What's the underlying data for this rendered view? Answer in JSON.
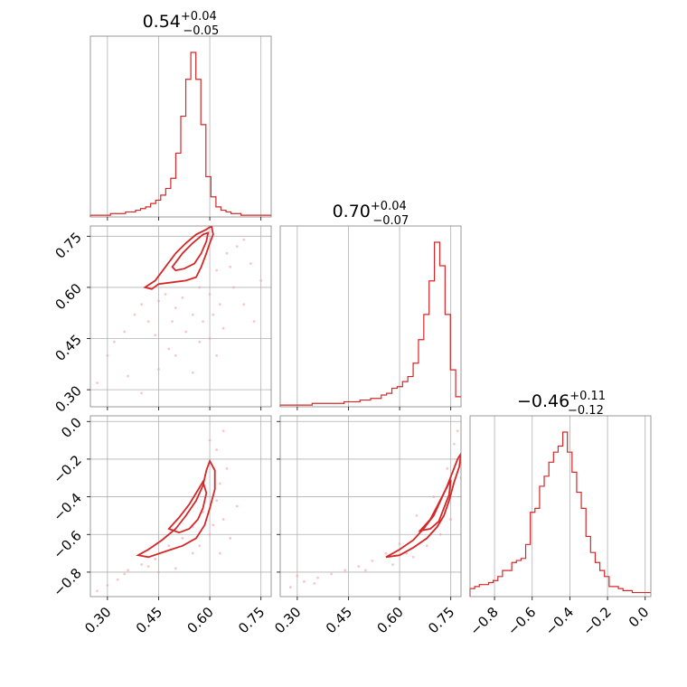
{
  "colors": {
    "series": "#d62728",
    "fill_inner": "#e8868a",
    "fill_outer": "#f6c9cb",
    "points": "#f2a2a5",
    "grid": "#b0b0b0"
  },
  "chart_data": {
    "type": "corner",
    "grid": true,
    "parameters": [
      {
        "range": [
          0.25,
          0.78
        ],
        "ticks": [
          "0.30",
          "0.45",
          "0.60",
          "0.75"
        ],
        "tick_values": [
          0.3,
          0.45,
          0.6,
          0.75
        ],
        "title": {
          "main": "0.54",
          "sup": "+0.04",
          "sub": "−0.05"
        }
      },
      {
        "range": [
          0.25,
          0.78
        ],
        "ticks": [
          "0.30",
          "0.45",
          "0.60",
          "0.75"
        ],
        "tick_values": [
          0.3,
          0.45,
          0.6,
          0.75
        ],
        "title": {
          "main": "0.70",
          "sup": "+0.04",
          "sub": "−0.07"
        }
      },
      {
        "range": [
          -0.93,
          0.03
        ],
        "ticks": [
          "−0.8",
          "−0.6",
          "−0.4",
          "−0.2",
          "0.0"
        ],
        "tick_values": [
          -0.8,
          -0.6,
          -0.4,
          -0.2,
          0.0
        ],
        "title": {
          "main": "−0.46",
          "sup": "+0.11",
          "sub": "−0.12"
        }
      }
    ],
    "histograms": [
      {
        "param": 0,
        "counts": [
          1,
          1,
          1,
          1,
          2,
          2,
          2,
          3,
          3,
          4,
          5,
          6,
          8,
          10,
          13,
          17,
          23,
          38,
          60,
          82,
          98,
          82,
          55,
          24,
          12,
          6,
          4,
          3,
          2,
          2,
          1,
          1,
          1,
          1,
          1,
          1
        ]
      },
      {
        "param": 1,
        "counts": [
          1,
          1,
          1,
          1,
          1,
          1,
          2,
          2,
          2,
          2,
          2,
          2,
          3,
          3,
          3,
          4,
          4,
          5,
          5,
          7,
          8,
          11,
          12,
          15,
          18,
          26,
          40,
          55,
          75,
          98,
          84,
          55,
          22,
          6
        ]
      },
      {
        "param": 2,
        "counts": [
          4,
          5,
          6,
          6,
          7,
          8,
          10,
          13,
          13,
          17,
          18,
          19,
          26,
          42,
          44,
          55,
          60,
          67,
          72,
          75,
          82,
          72,
          62,
          52,
          44,
          30,
          22,
          17,
          13,
          10,
          5,
          5,
          4,
          3,
          3,
          2,
          2,
          2,
          2
        ]
      }
    ],
    "pairs": [
      {
        "x_param": 0,
        "y_param": 1,
        "contour_outer": [
          [
            0.41,
            0.6
          ],
          [
            0.44,
            0.62
          ],
          [
            0.47,
            0.66
          ],
          [
            0.5,
            0.7
          ],
          [
            0.53,
            0.73
          ],
          [
            0.56,
            0.755
          ],
          [
            0.59,
            0.77
          ],
          [
            0.605,
            0.78
          ],
          [
            0.61,
            0.755
          ],
          [
            0.6,
            0.73
          ],
          [
            0.59,
            0.7
          ],
          [
            0.575,
            0.66
          ],
          [
            0.56,
            0.63
          ],
          [
            0.53,
            0.62
          ],
          [
            0.49,
            0.615
          ],
          [
            0.45,
            0.61
          ],
          [
            0.43,
            0.595
          ]
        ],
        "contour_inner": [
          [
            0.49,
            0.66
          ],
          [
            0.52,
            0.7
          ],
          [
            0.55,
            0.73
          ],
          [
            0.58,
            0.755
          ],
          [
            0.595,
            0.76
          ],
          [
            0.59,
            0.735
          ],
          [
            0.575,
            0.7
          ],
          [
            0.555,
            0.67
          ],
          [
            0.525,
            0.655
          ],
          [
            0.5,
            0.65
          ]
        ],
        "points": [
          [
            0.3,
            0.4
          ],
          [
            0.32,
            0.44
          ],
          [
            0.35,
            0.47
          ],
          [
            0.38,
            0.52
          ],
          [
            0.4,
            0.55
          ],
          [
            0.42,
            0.5
          ],
          [
            0.45,
            0.56
          ],
          [
            0.47,
            0.58
          ],
          [
            0.5,
            0.54
          ],
          [
            0.52,
            0.57
          ],
          [
            0.55,
            0.52
          ],
          [
            0.57,
            0.6
          ],
          [
            0.6,
            0.58
          ],
          [
            0.62,
            0.65
          ],
          [
            0.65,
            0.7
          ],
          [
            0.68,
            0.72
          ],
          [
            0.7,
            0.74
          ],
          [
            0.72,
            0.67
          ],
          [
            0.75,
            0.62
          ],
          [
            0.45,
            0.36
          ],
          [
            0.48,
            0.42
          ],
          [
            0.53,
            0.47
          ],
          [
            0.58,
            0.5
          ],
          [
            0.6,
            0.45
          ],
          [
            0.63,
            0.55
          ],
          [
            0.67,
            0.6
          ],
          [
            0.36,
            0.34
          ],
          [
            0.4,
            0.29
          ],
          [
            0.5,
            0.4
          ],
          [
            0.55,
            0.35
          ],
          [
            0.62,
            0.4
          ],
          [
            0.64,
            0.48
          ],
          [
            0.7,
            0.55
          ],
          [
            0.73,
            0.5
          ],
          [
            0.27,
            0.32
          ],
          [
            0.44,
            0.46
          ],
          [
            0.49,
            0.5
          ],
          [
            0.57,
            0.44
          ],
          [
            0.61,
            0.52
          ],
          [
            0.66,
            0.66
          ]
        ]
      },
      {
        "x_param": 0,
        "y_param": 2,
        "contour_outer": [
          [
            0.39,
            -0.71
          ],
          [
            0.42,
            -0.68
          ],
          [
            0.46,
            -0.63
          ],
          [
            0.5,
            -0.57
          ],
          [
            0.53,
            -0.5
          ],
          [
            0.56,
            -0.42
          ],
          [
            0.58,
            -0.34
          ],
          [
            0.59,
            -0.26
          ],
          [
            0.6,
            -0.21
          ],
          [
            0.615,
            -0.26
          ],
          [
            0.615,
            -0.36
          ],
          [
            0.6,
            -0.46
          ],
          [
            0.585,
            -0.55
          ],
          [
            0.56,
            -0.62
          ],
          [
            0.52,
            -0.66
          ],
          [
            0.47,
            -0.69
          ],
          [
            0.42,
            -0.72
          ]
        ],
        "contour_inner": [
          [
            0.48,
            -0.57
          ],
          [
            0.51,
            -0.51
          ],
          [
            0.54,
            -0.44
          ],
          [
            0.56,
            -0.38
          ],
          [
            0.58,
            -0.32
          ],
          [
            0.59,
            -0.38
          ],
          [
            0.58,
            -0.46
          ],
          [
            0.565,
            -0.52
          ],
          [
            0.54,
            -0.57
          ],
          [
            0.51,
            -0.59
          ]
        ],
        "points": [
          [
            0.27,
            -0.9
          ],
          [
            0.3,
            -0.87
          ],
          [
            0.33,
            -0.84
          ],
          [
            0.36,
            -0.79
          ],
          [
            0.4,
            -0.76
          ],
          [
            0.44,
            -0.73
          ],
          [
            0.48,
            -0.66
          ],
          [
            0.52,
            -0.62
          ],
          [
            0.55,
            -0.56
          ],
          [
            0.58,
            -0.48
          ],
          [
            0.62,
            -0.42
          ],
          [
            0.63,
            -0.33
          ],
          [
            0.62,
            -0.15
          ],
          [
            0.64,
            -0.05
          ],
          [
            0.6,
            -0.6
          ],
          [
            0.63,
            -0.7
          ],
          [
            0.66,
            -0.62
          ],
          [
            0.55,
            -0.7
          ],
          [
            0.5,
            -0.78
          ],
          [
            0.45,
            -0.8
          ],
          [
            0.64,
            -0.52
          ],
          [
            0.68,
            -0.45
          ],
          [
            0.6,
            -0.1
          ],
          [
            0.65,
            -0.25
          ],
          [
            0.35,
            -0.81
          ],
          [
            0.42,
            -0.77
          ],
          [
            0.57,
            -0.66
          ],
          [
            0.61,
            -0.55
          ]
        ]
      },
      {
        "x_param": 1,
        "y_param": 2,
        "contour_outer": [
          [
            0.56,
            -0.72
          ],
          [
            0.6,
            -0.68
          ],
          [
            0.64,
            -0.63
          ],
          [
            0.67,
            -0.57
          ],
          [
            0.7,
            -0.5
          ],
          [
            0.72,
            -0.42
          ],
          [
            0.74,
            -0.34
          ],
          [
            0.755,
            -0.27
          ],
          [
            0.77,
            -0.2
          ],
          [
            0.78,
            -0.17
          ],
          [
            0.775,
            -0.24
          ],
          [
            0.76,
            -0.32
          ],
          [
            0.745,
            -0.42
          ],
          [
            0.73,
            -0.5
          ],
          [
            0.71,
            -0.56
          ],
          [
            0.68,
            -0.62
          ],
          [
            0.64,
            -0.67
          ],
          [
            0.6,
            -0.71
          ]
        ],
        "contour_inner": [
          [
            0.66,
            -0.58
          ],
          [
            0.69,
            -0.52
          ],
          [
            0.71,
            -0.45
          ],
          [
            0.73,
            -0.38
          ],
          [
            0.75,
            -0.31
          ],
          [
            0.745,
            -0.39
          ],
          [
            0.73,
            -0.46
          ],
          [
            0.715,
            -0.53
          ],
          [
            0.69,
            -0.57
          ]
        ],
        "points": [
          [
            0.28,
            -0.88
          ],
          [
            0.32,
            -0.85
          ],
          [
            0.36,
            -0.83
          ],
          [
            0.4,
            -0.81
          ],
          [
            0.44,
            -0.79
          ],
          [
            0.48,
            -0.77
          ],
          [
            0.52,
            -0.74
          ],
          [
            0.56,
            -0.7
          ],
          [
            0.6,
            -0.65
          ],
          [
            0.64,
            -0.72
          ],
          [
            0.68,
            -0.66
          ],
          [
            0.72,
            -0.6
          ],
          [
            0.75,
            -0.52
          ],
          [
            0.76,
            -0.12
          ],
          [
            0.77,
            -0.05
          ],
          [
            0.7,
            -0.4
          ],
          [
            0.65,
            -0.5
          ],
          [
            0.74,
            -0.25
          ],
          [
            0.5,
            -0.79
          ],
          [
            0.58,
            -0.76
          ],
          [
            0.3,
            -0.82
          ],
          [
            0.35,
            -0.86
          ],
          [
            0.62,
            -0.7
          ],
          [
            0.78,
            -0.3
          ]
        ]
      }
    ]
  }
}
